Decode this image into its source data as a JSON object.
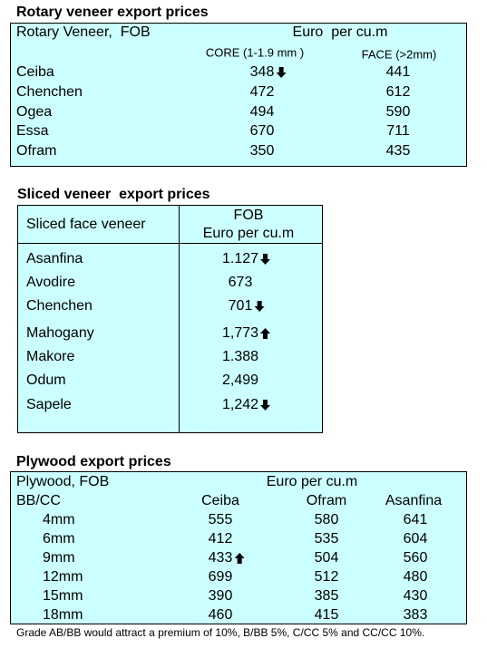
{
  "rotary": {
    "title": "Rotary veneer export prices",
    "label": "Rotary Veneer,  FOB",
    "unit": "Euro  per cu.m",
    "columns": [
      "CORE (1-1.9 mm )",
      "FACE (>2mm)"
    ],
    "rows": [
      {
        "cells": [
          {
            "text": "Ceiba"
          },
          {
            "text": "348",
            "trend": "down"
          },
          {
            "text": "441"
          }
        ]
      },
      {
        "cells": [
          {
            "text": "Chenchen"
          },
          {
            "text": "472"
          },
          {
            "text": "612"
          }
        ]
      },
      {
        "cells": [
          {
            "text": "Ogea"
          },
          {
            "text": "494"
          },
          {
            "text": "590"
          }
        ]
      },
      {
        "cells": [
          {
            "text": "Essa"
          },
          {
            "text": "670"
          },
          {
            "text": "711"
          }
        ]
      },
      {
        "cells": [
          {
            "text": "Ofram"
          },
          {
            "text": "350"
          },
          {
            "text": "435"
          }
        ]
      }
    ]
  },
  "sliced": {
    "title": "Sliced veneer  export prices",
    "label": "Sliced face veneer",
    "unit": [
      "FOB",
      "Euro per cu.m"
    ],
    "rows": [
      {
        "cells": [
          {
            "text": "Asanfina"
          },
          {
            "text": "1.127",
            "trend": "down"
          }
        ]
      },
      {
        "cells": [
          {
            "text": "Avodire"
          },
          {
            "text": "673"
          }
        ]
      },
      {
        "cells": [
          {
            "text": "Chenchen"
          },
          {
            "text": "701",
            "trend": "down"
          }
        ]
      },
      {
        "cells": [
          {
            "text": "Mahogany"
          },
          {
            "text": "1,773",
            "trend": "up"
          }
        ]
      },
      {
        "cells": [
          {
            "text": "Makore"
          },
          {
            "text": "1.388"
          }
        ]
      },
      {
        "cells": [
          {
            "text": "Odum"
          },
          {
            "text": "2,499"
          }
        ]
      },
      {
        "cells": [
          {
            "text": "Sapele"
          },
          {
            "text": "1,242",
            "trend": "down"
          }
        ]
      }
    ]
  },
  "plywood": {
    "title": "Plywood export prices",
    "label": "Plywood, FOB",
    "unit": "Euro per cu.m",
    "grade": "BB/CC",
    "columns": [
      "Ceiba",
      "Ofram",
      "Asanfina"
    ],
    "rows": [
      {
        "cells": [
          {
            "text": "4mm"
          },
          {
            "text": "555"
          },
          {
            "text": "580"
          },
          {
            "text": "641"
          }
        ]
      },
      {
        "cells": [
          {
            "text": "6mm"
          },
          {
            "text": "412"
          },
          {
            "text": "535"
          },
          {
            "text": "604"
          }
        ]
      },
      {
        "cells": [
          {
            "text": "9mm"
          },
          {
            "text": "433",
            "trend": "up"
          },
          {
            "text": "504"
          },
          {
            "text": "560"
          }
        ]
      },
      {
        "cells": [
          {
            "text": "12mm"
          },
          {
            "text": "699"
          },
          {
            "text": "512"
          },
          {
            "text": "480"
          }
        ]
      },
      {
        "cells": [
          {
            "text": "15mm"
          },
          {
            "text": "390"
          },
          {
            "text": "385"
          },
          {
            "text": "430"
          }
        ]
      },
      {
        "cells": [
          {
            "text": "18mm"
          },
          {
            "text": "460"
          },
          {
            "text": "415"
          },
          {
            "text": "383"
          }
        ]
      }
    ],
    "footnote": "Grade AB/BB would attract a premium of 10%, B/BB 5%, C/CC 5% and CC/CC 10%."
  }
}
